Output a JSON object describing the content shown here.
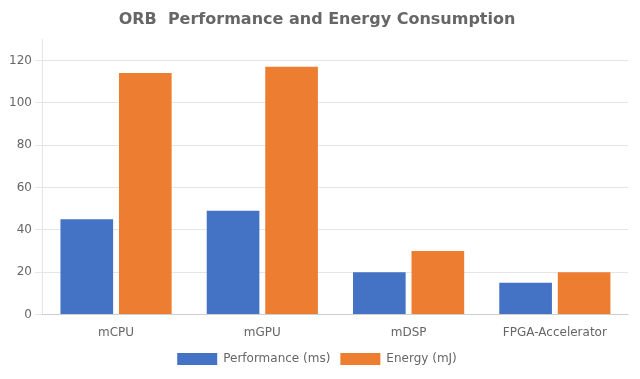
{
  "chart_data": {
    "type": "bar",
    "title": "ORB  Performance and Energy Consumption",
    "categories": [
      "mCPU",
      "mGPU",
      "mDSP",
      "FPGA-Accelerator"
    ],
    "series": [
      {
        "name": "Performance (ms)",
        "color": "#4472C4",
        "values": [
          45,
          49,
          20,
          15
        ]
      },
      {
        "name": "Energy (mJ)",
        "color": "#ED7D31",
        "values": [
          114,
          117,
          30,
          20
        ]
      }
    ],
    "ylim": [
      0,
      130
    ],
    "yticks": [
      0,
      20,
      40,
      60,
      80,
      100,
      120
    ],
    "grid": true,
    "legend": "bottom"
  }
}
